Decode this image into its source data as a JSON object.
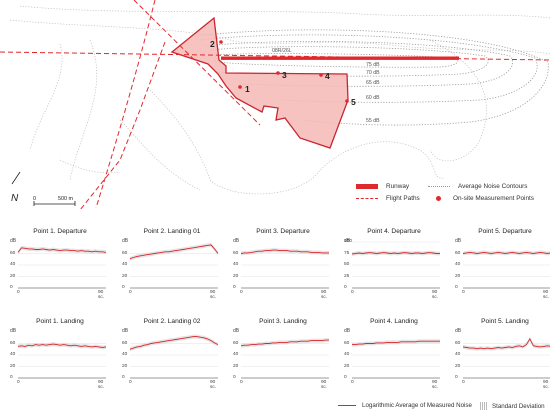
{
  "map": {
    "runway_label": "08R/26L",
    "contour_labels": [
      "75 dB",
      "70 dB",
      "65 dB",
      "60 dB",
      "55 dB"
    ],
    "point_labels": [
      "1",
      "2",
      "3",
      "4",
      "5"
    ],
    "north_label": "N",
    "scale_labels": [
      "0",
      "500 m"
    ]
  },
  "legend": {
    "runway": "Runway",
    "flight_paths": "Flight Paths",
    "contours": "Average Noise Contours",
    "points": "On-site Measurement Points"
  },
  "chart_data": [
    {
      "type": "line",
      "title": "Point 1. Departure",
      "ylabel": "dB",
      "x_start_label": "0",
      "x_end_label": "90 sc.",
      "yticks": [
        0,
        20,
        40,
        60
      ],
      "ylim": [
        0,
        80
      ],
      "values": [
        62,
        70,
        69,
        68,
        68,
        67,
        67,
        68,
        67,
        66,
        67,
        66,
        65,
        66,
        66,
        65,
        65,
        64,
        65,
        64,
        64,
        63,
        64,
        63,
        63,
        62
      ]
    },
    {
      "type": "line",
      "title": "Point 2. Landing 01",
      "ylabel": "dB",
      "x_start_label": "0",
      "x_end_label": "90 sc.",
      "yticks": [
        0,
        20,
        40,
        60
      ],
      "ylim": [
        0,
        80
      ],
      "values": [
        51,
        53,
        55,
        56,
        57,
        58,
        59,
        60,
        61,
        62,
        63,
        63,
        64,
        65,
        66,
        67,
        68,
        69,
        70,
        71,
        72,
        73,
        74,
        75,
        68,
        60
      ]
    },
    {
      "type": "line",
      "title": "Point 3. Departure",
      "ylabel": "dB",
      "x_start_label": "0",
      "x_end_label": "90 sc.",
      "yticks": [
        0,
        20,
        40,
        60
      ],
      "ylim": [
        0,
        80
      ],
      "values": [
        60,
        61,
        61,
        62,
        63,
        64,
        64,
        65,
        65,
        66,
        66,
        65,
        65,
        65,
        64,
        64,
        64,
        63,
        63,
        63,
        62,
        62,
        62,
        61,
        61,
        61
      ]
    },
    {
      "type": "line",
      "title": "Point 4. Departure",
      "ylabel": "dB",
      "x_start_label": "0",
      "x_end_label": "90 sc.",
      "yticks": [
        0,
        25,
        50,
        75,
        100
      ],
      "ylim": [
        0,
        100
      ],
      "values": [
        74,
        75,
        76,
        75,
        76,
        77,
        76,
        75,
        76,
        77,
        76,
        75,
        76,
        75,
        76,
        77,
        76,
        75,
        76,
        76,
        75,
        76,
        77,
        76,
        75,
        75
      ]
    },
    {
      "type": "line",
      "title": "Point 5. Departure",
      "ylabel": "dB",
      "x_start_label": "0",
      "x_end_label": "90 sc.",
      "yticks": [
        0,
        20,
        40,
        60
      ],
      "ylim": [
        0,
        80
      ],
      "values": [
        60,
        61,
        62,
        61,
        60,
        61,
        62,
        61,
        60,
        61,
        62,
        61,
        60,
        61,
        62,
        61,
        60,
        61,
        62,
        61,
        60,
        61,
        62,
        61,
        60,
        61
      ]
    },
    {
      "type": "line",
      "title": "Point 1. Landing",
      "ylabel": "dB",
      "x_start_label": "0",
      "x_end_label": "90 sc.",
      "yticks": [
        0,
        20,
        40,
        60
      ],
      "ylim": [
        0,
        80
      ],
      "values": [
        55,
        56,
        55,
        57,
        56,
        58,
        57,
        58,
        57,
        58,
        59,
        58,
        57,
        58,
        57,
        56,
        57,
        56,
        55,
        56,
        55,
        54,
        55,
        54,
        53,
        54
      ]
    },
    {
      "type": "line",
      "title": "Point 2. Landing 02",
      "ylabel": "dB",
      "x_start_label": "0",
      "x_end_label": "90 sc.",
      "yticks": [
        0,
        20,
        40,
        60
      ],
      "ylim": [
        0,
        80
      ],
      "values": [
        50,
        52,
        54,
        55,
        57,
        58,
        60,
        61,
        62,
        63,
        64,
        65,
        66,
        67,
        68,
        69,
        70,
        71,
        72,
        72,
        71,
        70,
        68,
        65,
        61,
        58
      ]
    },
    {
      "type": "line",
      "title": "Point 3. Landing",
      "ylabel": "dB",
      "x_start_label": "0",
      "x_end_label": "90 sc.",
      "yticks": [
        0,
        20,
        40,
        60
      ],
      "ylim": [
        0,
        80
      ],
      "values": [
        56,
        57,
        57,
        58,
        58,
        59,
        59,
        60,
        60,
        61,
        61,
        62,
        62,
        62,
        63,
        63,
        63,
        64,
        64,
        64,
        65,
        65,
        65,
        65,
        66,
        66
      ]
    },
    {
      "type": "line",
      "title": "Point 4. Landing",
      "ylabel": "dB",
      "x_start_label": "0",
      "x_end_label": "90 sc.",
      "yticks": [
        0,
        20,
        40,
        60
      ],
      "ylim": [
        0,
        80
      ],
      "values": [
        58,
        58,
        59,
        59,
        60,
        60,
        60,
        61,
        61,
        61,
        62,
        62,
        62,
        62,
        63,
        63,
        63,
        63,
        63,
        64,
        64,
        64,
        64,
        64,
        64,
        64
      ]
    },
    {
      "type": "line",
      "title": "Point 5. Landing",
      "ylabel": "dB",
      "x_start_label": "0",
      "x_end_label": "90 sc.",
      "yticks": [
        0,
        20,
        40,
        60
      ],
      "ylim": [
        0,
        80
      ],
      "values": [
        54,
        53,
        52,
        52,
        51,
        52,
        51,
        52,
        51,
        52,
        53,
        52,
        53,
        54,
        53,
        55,
        56,
        54,
        58,
        68,
        56,
        55,
        54,
        55,
        56,
        55
      ]
    }
  ],
  "bottom_legend": {
    "line": "Logarithmic Average of Measured Noise",
    "std": "Standard Deviation"
  },
  "colors": {
    "accent": "#e0292e",
    "zone_fill": "#f6b8b6",
    "contour": "#9a9a9a"
  }
}
